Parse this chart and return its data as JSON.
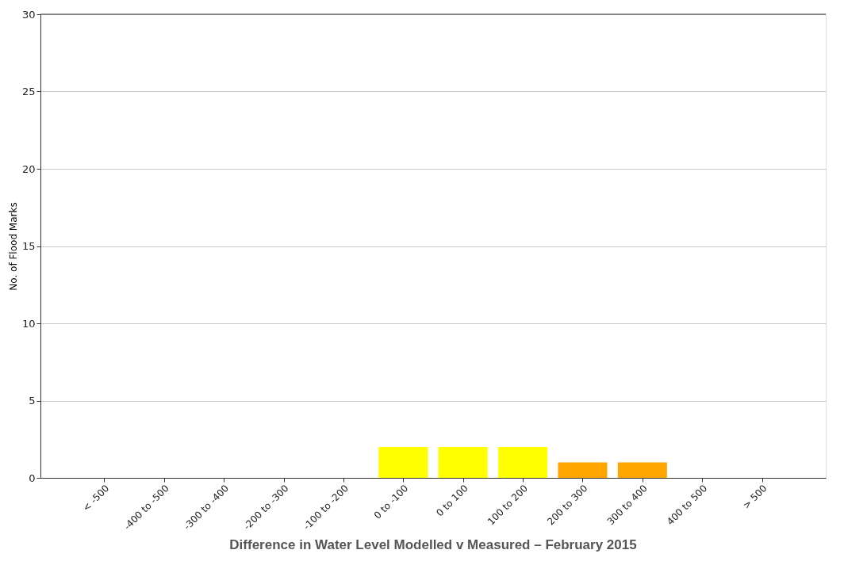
{
  "chart_data": {
    "type": "bar",
    "title": "Difference in Water Level Modelled v Measured – February 2015",
    "ylabel": "No. of Flood Marks",
    "categories": [
      "< -500",
      "-400 to -500",
      "-300 to -400",
      "-200 to -300",
      "-100 to -200",
      "0 to -100",
      "0 to 100",
      "100 to 200",
      "200 to 300",
      "300 to 400",
      "400 to 500",
      "> 500"
    ],
    "values": [
      0,
      0,
      0,
      0,
      0,
      2,
      2,
      2,
      1,
      1,
      0,
      0
    ],
    "colors": [
      "#ff0000",
      "#ff0000",
      "#ff0000",
      "#ffa500",
      "#ffa500",
      "#ffff00",
      "#ffff00",
      "#ffff00",
      "#ffa500",
      "#ffa500",
      "#ff0000",
      "#ff0000"
    ],
    "ylim": [
      0,
      30
    ],
    "yticks": [
      0,
      5,
      10,
      15,
      20,
      25,
      30
    ],
    "grid": "y"
  }
}
